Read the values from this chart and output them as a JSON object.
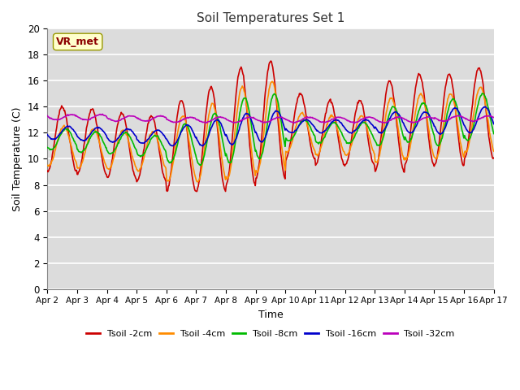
{
  "title": "Soil Temperatures Set 1",
  "xlabel": "Time",
  "ylabel": "Soil Temperature (C)",
  "ylim": [
    0,
    20
  ],
  "yticks": [
    0,
    2,
    4,
    6,
    8,
    10,
    12,
    14,
    16,
    18,
    20
  ],
  "xtick_labels": [
    "Apr 2",
    "Apr 3",
    "Apr 4",
    "Apr 5",
    "Apr 6",
    "Apr 7",
    "Apr 8",
    "Apr 9",
    "Apr 10",
    "Apr 11",
    "Apr 12",
    "Apr 13",
    "Apr 14",
    "Apr 15",
    "Apr 16",
    "Apr 17"
  ],
  "annotation_text": "VR_met",
  "annotation_color": "#8B0000",
  "annotation_bg": "#FFFFCC",
  "bg_color": "#DCDCDC",
  "series": [
    {
      "label": "Tsoil -2cm",
      "color": "#CC0000"
    },
    {
      "label": "Tsoil -4cm",
      "color": "#FF8C00"
    },
    {
      "label": "Tsoil -8cm",
      "color": "#00BB00"
    },
    {
      "label": "Tsoil -16cm",
      "color": "#0000CC"
    },
    {
      "label": "Tsoil -32cm",
      "color": "#BB00BB"
    }
  ],
  "n_points": 720,
  "days": 15
}
